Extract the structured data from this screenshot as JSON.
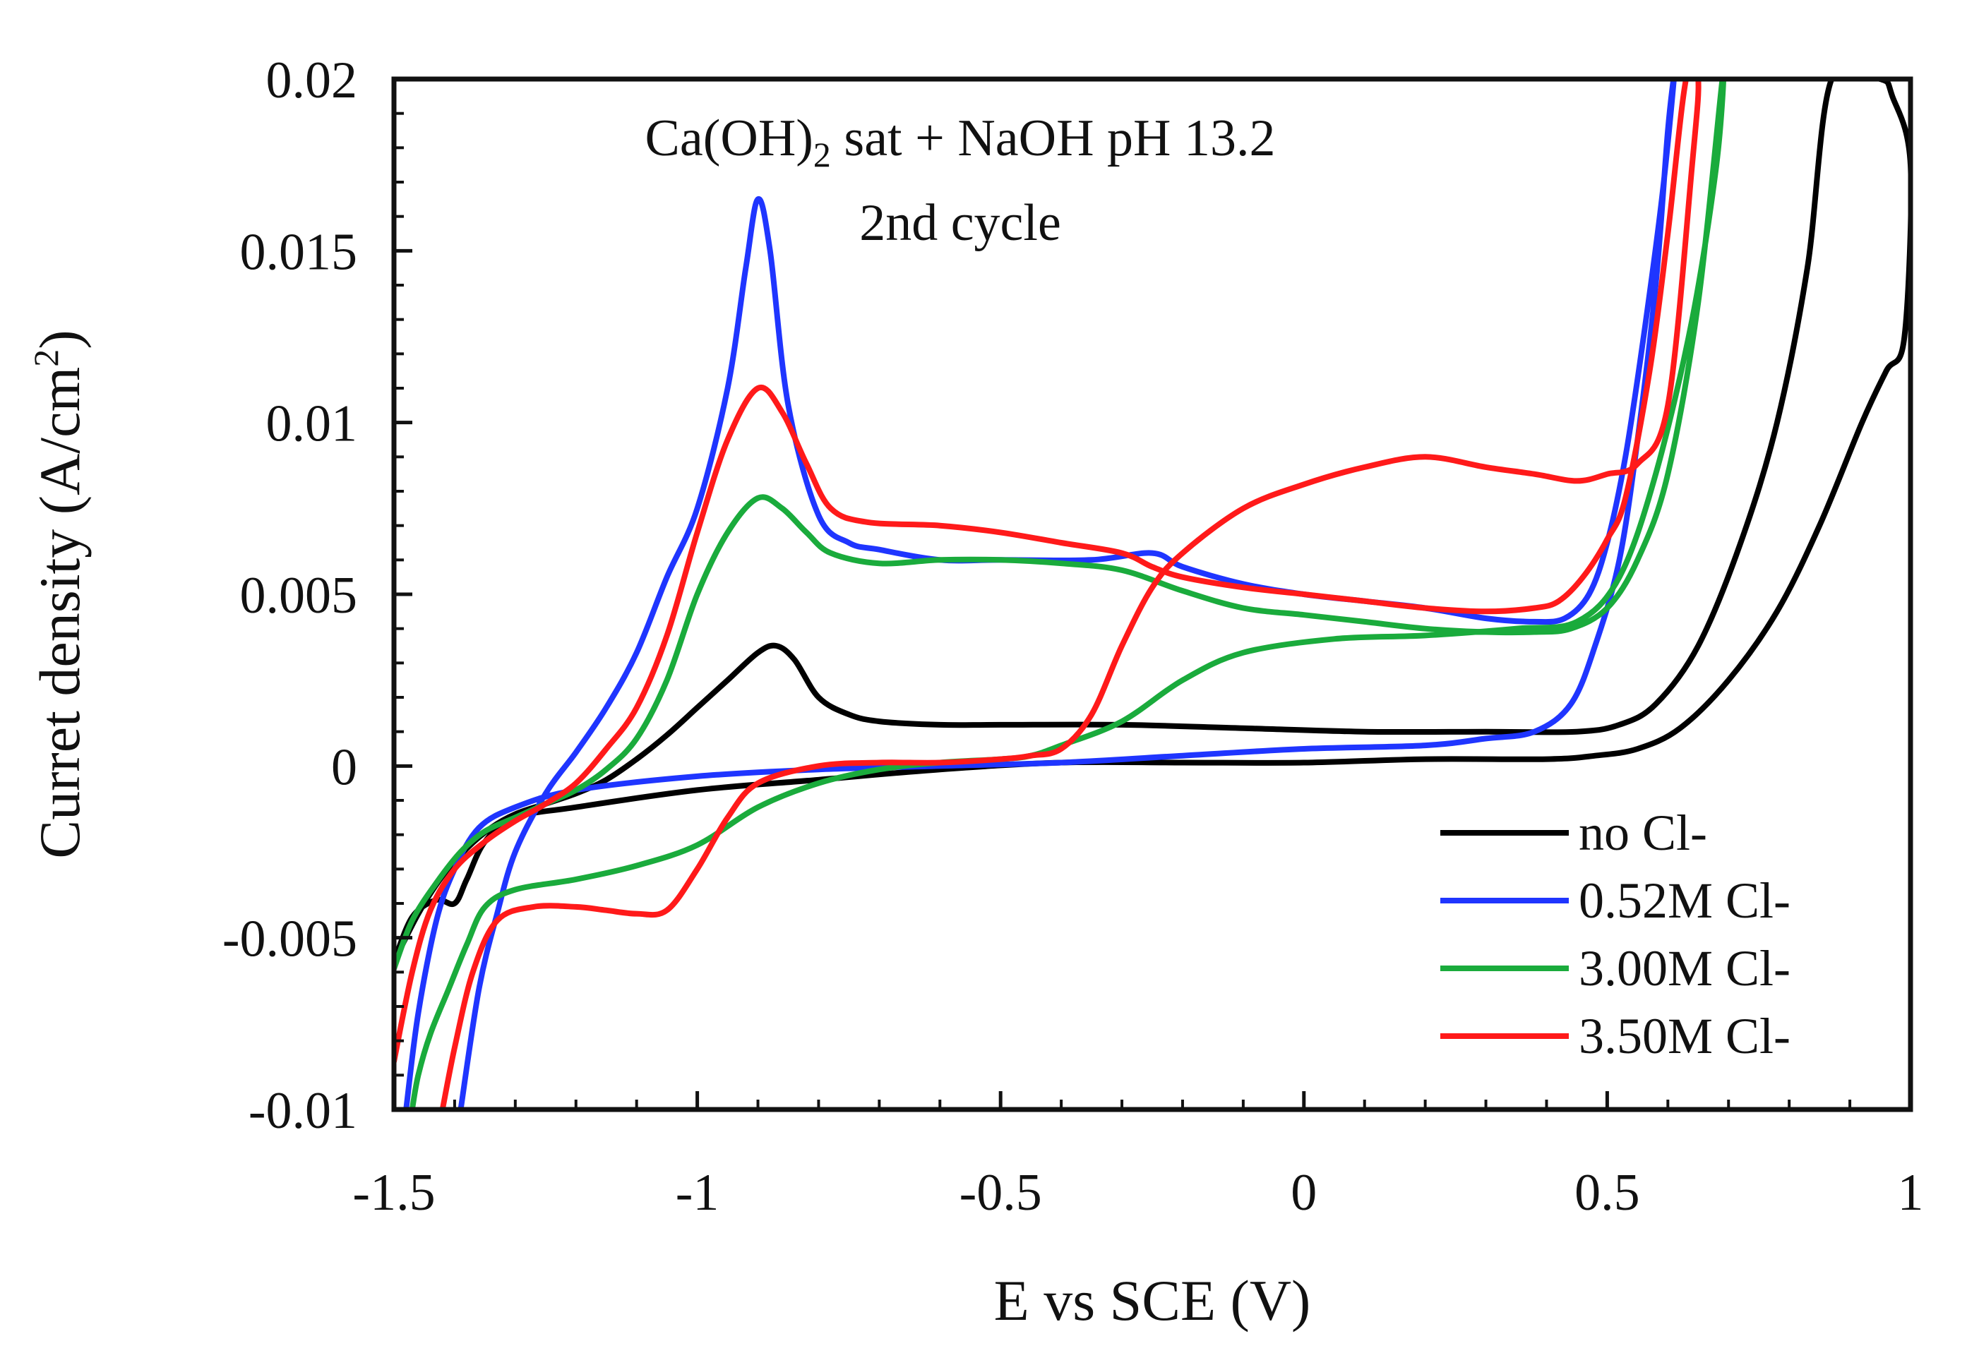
{
  "chart_data": {
    "type": "line",
    "title": "",
    "annotations": {
      "line1": {
        "base": "Ca(OH)",
        "sub": "2",
        "rest": " sat + NaOH pH 13.2"
      },
      "line2": "2nd cycle"
    },
    "xlabel": "E vs SCE (V)",
    "ylabel": {
      "base": "Curret density (A/cm",
      "sup": "2",
      "close": ")"
    },
    "xlim": [
      -1.5,
      1
    ],
    "ylim": [
      -0.01,
      0.02
    ],
    "x_ticks": [
      -1.5,
      -1,
      -0.5,
      0,
      0.5,
      1
    ],
    "x_tick_labels": [
      "-1.5",
      "-1",
      "-0.5",
      "0",
      "0.5",
      "1"
    ],
    "y_ticks": [
      -0.01,
      -0.005,
      0,
      0.005,
      0.01,
      0.015,
      0.02
    ],
    "y_tick_labels": [
      "-0.01",
      "-0.005",
      "0",
      "0.005",
      "0.01",
      "0.015",
      "0.02"
    ],
    "grid": false,
    "legend_position": "bottom-right",
    "series": [
      {
        "name": "no Cl-",
        "color": "#000000",
        "x": [
          -1.5,
          -1.46,
          -1.42,
          -1.38,
          -1.34,
          -1.3,
          -1.25,
          -1.2,
          -1.15,
          -1.1,
          -1.05,
          -1.0,
          -0.95,
          -0.9,
          -0.87,
          -0.84,
          -0.8,
          -0.75,
          -0.7,
          -0.6,
          -0.5,
          -0.3,
          -0.1,
          0.1,
          0.3,
          0.45,
          0.52,
          0.58,
          0.65,
          0.72,
          0.78,
          0.83,
          0.87,
          0.95,
          0.97,
          1.0,
          0.99,
          0.96,
          0.92,
          0.85,
          0.78,
          0.7,
          0.62,
          0.55,
          0.48,
          0.4,
          0.2,
          0.0,
          -0.2,
          -0.4,
          -0.6,
          -0.8,
          -1.0,
          -1.2,
          -1.3,
          -1.35,
          -1.38,
          -1.4,
          -1.43,
          -1.47,
          -1.5
        ],
        "y": [
          -0.0057,
          -0.0043,
          -0.0032,
          -0.0024,
          -0.0018,
          -0.0014,
          -0.0011,
          -0.0008,
          -0.0004,
          0.0002,
          0.0009,
          0.0017,
          0.0025,
          0.0033,
          0.0035,
          0.0031,
          0.002,
          0.0015,
          0.0013,
          0.0012,
          0.0012,
          0.0012,
          0.0011,
          0.001,
          0.001,
          0.001,
          0.0012,
          0.0018,
          0.0035,
          0.0065,
          0.01,
          0.0145,
          0.02,
          0.02,
          0.0195,
          0.0175,
          0.0125,
          0.0115,
          0.01,
          0.007,
          0.0045,
          0.0025,
          0.0011,
          0.0005,
          0.0003,
          0.0002,
          0.0002,
          0.0001,
          0.0001,
          0.0001,
          -0.0001,
          -0.0004,
          -0.0007,
          -0.0012,
          -0.0015,
          -0.0022,
          -0.0033,
          -0.004,
          -0.0039,
          -0.0044,
          -0.0057
        ]
      },
      {
        "name": "0.52M Cl-",
        "color": "#1f35ff",
        "x": [
          -1.39,
          -1.36,
          -1.33,
          -1.3,
          -1.25,
          -1.2,
          -1.15,
          -1.1,
          -1.05,
          -1.0,
          -0.95,
          -0.92,
          -0.9,
          -0.88,
          -0.85,
          -0.8,
          -0.75,
          -0.7,
          -0.6,
          -0.5,
          -0.35,
          -0.25,
          -0.2,
          -0.1,
          0.0,
          0.1,
          0.2,
          0.3,
          0.38,
          0.43,
          0.47,
          0.5,
          0.53,
          0.56,
          0.59,
          0.61,
          0.6,
          0.58,
          0.55,
          0.52,
          0.48,
          0.44,
          0.38,
          0.3,
          0.2,
          0.0,
          -0.2,
          -0.4,
          -0.6,
          -0.8,
          -1.0,
          -1.2,
          -1.3,
          -1.36,
          -1.4,
          -1.43,
          -1.46,
          -1.48
        ],
        "y": [
          -0.01,
          -0.0065,
          -0.0043,
          -0.0025,
          -0.0008,
          0.0004,
          0.0017,
          0.0033,
          0.0055,
          0.0075,
          0.011,
          0.0145,
          0.0165,
          0.015,
          0.0105,
          0.0073,
          0.0065,
          0.0063,
          0.006,
          0.006,
          0.006,
          0.0062,
          0.0058,
          0.0053,
          0.005,
          0.0048,
          0.0046,
          0.0043,
          0.0042,
          0.0043,
          0.005,
          0.0065,
          0.009,
          0.0125,
          0.0165,
          0.02,
          0.0185,
          0.014,
          0.0095,
          0.006,
          0.0035,
          0.0018,
          0.001,
          0.0008,
          0.0006,
          0.0005,
          0.0003,
          0.0001,
          0.0,
          -0.0001,
          -0.0003,
          -0.0007,
          -0.0012,
          -0.0018,
          -0.003,
          -0.0045,
          -0.0072,
          -0.01
        ]
      },
      {
        "name": "3.00M Cl-",
        "color": "#1aab3c",
        "x": [
          -1.5,
          -1.47,
          -1.43,
          -1.39,
          -1.35,
          -1.3,
          -1.25,
          -1.2,
          -1.15,
          -1.1,
          -1.05,
          -1.0,
          -0.95,
          -0.9,
          -0.86,
          -0.82,
          -0.78,
          -0.7,
          -0.6,
          -0.5,
          -0.4,
          -0.3,
          -0.2,
          -0.1,
          0.0,
          0.1,
          0.2,
          0.3,
          0.38,
          0.44,
          0.5,
          0.55,
          0.6,
          0.65,
          0.69,
          0.68,
          0.64,
          0.58,
          0.52,
          0.45,
          0.35,
          0.2,
          0.05,
          -0.1,
          -0.2,
          -0.3,
          -0.4,
          -0.45,
          -0.5,
          -0.6,
          -0.7,
          -0.8,
          -0.9,
          -1.0,
          -1.1,
          -1.2,
          -1.3,
          -1.35,
          -1.38,
          -1.41,
          -1.44,
          -1.46,
          -1.47
        ],
        "y": [
          -0.0059,
          -0.0045,
          -0.0034,
          -0.0025,
          -0.0019,
          -0.0015,
          -0.0011,
          -0.0007,
          -0.0001,
          0.0008,
          0.0025,
          0.005,
          0.0068,
          0.0078,
          0.0075,
          0.0068,
          0.0062,
          0.0059,
          0.006,
          0.006,
          0.0059,
          0.0057,
          0.0051,
          0.0046,
          0.0044,
          0.0042,
          0.004,
          0.0039,
          0.0039,
          0.004,
          0.0046,
          0.006,
          0.0085,
          0.0135,
          0.02,
          0.0175,
          0.013,
          0.0085,
          0.0055,
          0.0042,
          0.004,
          0.0038,
          0.0037,
          0.0033,
          0.0025,
          0.0013,
          0.0006,
          0.0003,
          0.0002,
          0.0001,
          -0.0001,
          -0.0005,
          -0.0012,
          -0.0023,
          -0.0029,
          -0.0033,
          -0.0036,
          -0.0041,
          -0.0052,
          -0.0065,
          -0.0078,
          -0.009,
          -0.01
        ]
      },
      {
        "name": "3.50M Cl-",
        "color": "#ff1a1a",
        "x": [
          -1.5,
          -1.47,
          -1.44,
          -1.4,
          -1.35,
          -1.3,
          -1.25,
          -1.2,
          -1.15,
          -1.1,
          -1.05,
          -1.0,
          -0.95,
          -0.9,
          -0.86,
          -0.82,
          -0.78,
          -0.72,
          -0.6,
          -0.5,
          -0.4,
          -0.3,
          -0.25,
          -0.2,
          -0.1,
          0.0,
          0.1,
          0.2,
          0.3,
          0.38,
          0.42,
          0.46,
          0.5,
          0.53,
          0.57,
          0.6,
          0.63,
          0.65,
          0.64,
          0.6,
          0.55,
          0.5,
          0.45,
          0.38,
          0.3,
          0.2,
          0.1,
          0.0,
          -0.1,
          -0.2,
          -0.25,
          -0.3,
          -0.35,
          -0.4,
          -0.45,
          -0.5,
          -0.6,
          -0.7,
          -0.8,
          -0.9,
          -0.95,
          -1.0,
          -1.05,
          -1.1,
          -1.15,
          -1.2,
          -1.27,
          -1.33,
          -1.37,
          -1.4,
          -1.42
        ],
        "y": [
          -0.0086,
          -0.006,
          -0.0042,
          -0.003,
          -0.0022,
          -0.0016,
          -0.0011,
          -0.0005,
          0.0005,
          0.0017,
          0.0038,
          0.0068,
          0.0095,
          0.011,
          0.0103,
          0.0088,
          0.0075,
          0.0071,
          0.007,
          0.0068,
          0.0065,
          0.0062,
          0.0058,
          0.0055,
          0.0052,
          0.005,
          0.0048,
          0.0046,
          0.0045,
          0.0046,
          0.0048,
          0.0055,
          0.0066,
          0.0078,
          0.0115,
          0.0155,
          0.02,
          0.02,
          0.0175,
          0.0105,
          0.0088,
          0.0085,
          0.0083,
          0.0085,
          0.0087,
          0.009,
          0.0087,
          0.0082,
          0.0075,
          0.0062,
          0.0052,
          0.0035,
          0.0015,
          0.0005,
          0.0003,
          0.0002,
          0.0001,
          0.0001,
          0.0,
          -0.0005,
          -0.0015,
          -0.003,
          -0.0042,
          -0.0043,
          -0.0042,
          -0.0041,
          -0.0041,
          -0.0045,
          -0.006,
          -0.0082,
          -0.01
        ]
      }
    ]
  }
}
